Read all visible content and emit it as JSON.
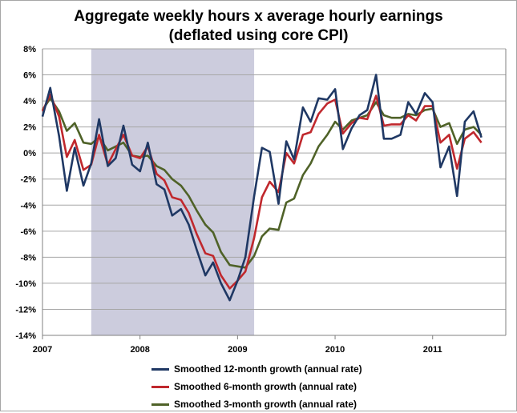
{
  "chart_data": {
    "type": "line",
    "title": "Aggregate weekly hours x average hourly earnings",
    "subtitle": "(deflated using core CPI)",
    "xlabel": "",
    "ylabel": "",
    "ylim": [
      -14,
      8
    ],
    "xlim": [
      2007.0,
      2011.75
    ],
    "yticks": [
      "8%",
      "6%",
      "4%",
      "2%",
      "0%",
      "-2%",
      "-4%",
      "-6%",
      "-8%",
      "-10%",
      "-12%",
      "-14%"
    ],
    "ytick_values": [
      8,
      6,
      4,
      2,
      0,
      -2,
      -4,
      -6,
      -8,
      -10,
      -12,
      -14
    ],
    "xticks": [
      "2007",
      "2008",
      "2009",
      "2010",
      "2011"
    ],
    "xtick_values": [
      2007,
      2008,
      2009,
      2010,
      2011
    ],
    "recession": {
      "start": 2007.5,
      "end": 2009.17
    },
    "grid": true,
    "legend_position": "bottom",
    "colors": {
      "recession": "#ccccdd",
      "grid": "#a6a6a6"
    },
    "series": [
      {
        "name": "Smoothed 12-month growth (annual rate)",
        "color": "#1f3864",
        "points": [
          [
            2007.0,
            2.8
          ],
          [
            2007.08,
            5.0
          ],
          [
            2007.17,
            1.3
          ],
          [
            2007.25,
            -2.9
          ],
          [
            2007.33,
            0.4
          ],
          [
            2007.42,
            -2.5
          ],
          [
            2007.5,
            -0.8
          ],
          [
            2007.58,
            2.6
          ],
          [
            2007.67,
            -1.0
          ],
          [
            2007.75,
            -0.4
          ],
          [
            2007.83,
            2.1
          ],
          [
            2007.92,
            -0.9
          ],
          [
            2008.0,
            -1.4
          ],
          [
            2008.08,
            0.8
          ],
          [
            2008.17,
            -2.4
          ],
          [
            2008.25,
            -2.8
          ],
          [
            2008.33,
            -4.8
          ],
          [
            2008.42,
            -4.3
          ],
          [
            2008.5,
            -5.5
          ],
          [
            2008.58,
            -7.4
          ],
          [
            2008.67,
            -9.4
          ],
          [
            2008.75,
            -8.4
          ],
          [
            2008.83,
            -10.0
          ],
          [
            2008.92,
            -11.3
          ],
          [
            2009.0,
            -9.8
          ],
          [
            2009.08,
            -8.0
          ],
          [
            2009.17,
            -3.3
          ],
          [
            2009.25,
            0.4
          ],
          [
            2009.33,
            0.1
          ],
          [
            2009.42,
            -3.9
          ],
          [
            2009.5,
            0.9
          ],
          [
            2009.58,
            -0.5
          ],
          [
            2009.67,
            3.5
          ],
          [
            2009.75,
            2.4
          ],
          [
            2009.83,
            4.2
          ],
          [
            2009.92,
            4.1
          ],
          [
            2010.0,
            4.9
          ],
          [
            2010.08,
            0.3
          ],
          [
            2010.17,
            1.9
          ],
          [
            2010.25,
            2.9
          ],
          [
            2010.33,
            3.3
          ],
          [
            2010.42,
            6.0
          ],
          [
            2010.5,
            1.1
          ],
          [
            2010.58,
            1.1
          ],
          [
            2010.67,
            1.4
          ],
          [
            2010.75,
            3.9
          ],
          [
            2010.83,
            3.0
          ],
          [
            2010.92,
            4.6
          ],
          [
            2011.0,
            3.9
          ],
          [
            2011.08,
            -1.1
          ],
          [
            2011.17,
            0.5
          ],
          [
            2011.25,
            -3.3
          ],
          [
            2011.33,
            2.4
          ],
          [
            2011.42,
            3.2
          ],
          [
            2011.5,
            1.2
          ]
        ]
      },
      {
        "name": "Smoothed 6-month growth (annual rate)",
        "color": "#c0282d",
        "points": [
          [
            2007.0,
            3.2
          ],
          [
            2007.08,
            4.5
          ],
          [
            2007.17,
            2.8
          ],
          [
            2007.25,
            -0.3
          ],
          [
            2007.33,
            1.0
          ],
          [
            2007.42,
            -1.3
          ],
          [
            2007.5,
            -0.9
          ],
          [
            2007.58,
            1.4
          ],
          [
            2007.67,
            -0.9
          ],
          [
            2007.75,
            0.3
          ],
          [
            2007.83,
            1.4
          ],
          [
            2007.92,
            -0.2
          ],
          [
            2008.0,
            -0.4
          ],
          [
            2008.08,
            0.5
          ],
          [
            2008.17,
            -1.6
          ],
          [
            2008.25,
            -2.1
          ],
          [
            2008.33,
            -3.4
          ],
          [
            2008.42,
            -3.6
          ],
          [
            2008.5,
            -4.6
          ],
          [
            2008.58,
            -6.2
          ],
          [
            2008.67,
            -7.7
          ],
          [
            2008.75,
            -7.9
          ],
          [
            2008.83,
            -9.4
          ],
          [
            2008.92,
            -10.4
          ],
          [
            2009.0,
            -9.8
          ],
          [
            2009.08,
            -9.1
          ],
          [
            2009.17,
            -6.5
          ],
          [
            2009.25,
            -3.4
          ],
          [
            2009.33,
            -2.2
          ],
          [
            2009.42,
            -3.0
          ],
          [
            2009.5,
            0.0
          ],
          [
            2009.58,
            -0.8
          ],
          [
            2009.67,
            1.4
          ],
          [
            2009.75,
            1.6
          ],
          [
            2009.83,
            3.0
          ],
          [
            2009.92,
            3.8
          ],
          [
            2010.0,
            4.1
          ],
          [
            2010.08,
            1.5
          ],
          [
            2010.17,
            2.3
          ],
          [
            2010.25,
            2.7
          ],
          [
            2010.33,
            2.6
          ],
          [
            2010.42,
            4.4
          ],
          [
            2010.5,
            2.1
          ],
          [
            2010.58,
            2.2
          ],
          [
            2010.67,
            2.2
          ],
          [
            2010.75,
            2.9
          ],
          [
            2010.83,
            2.5
          ],
          [
            2010.92,
            3.6
          ],
          [
            2011.0,
            3.6
          ],
          [
            2011.08,
            0.8
          ],
          [
            2011.17,
            1.4
          ],
          [
            2011.25,
            -1.2
          ],
          [
            2011.33,
            1.1
          ],
          [
            2011.42,
            1.6
          ],
          [
            2011.5,
            0.8
          ]
        ]
      },
      {
        "name": "Smoothed 3-month growth (annual rate)",
        "color": "#4f6228",
        "points": [
          [
            2007.0,
            3.3
          ],
          [
            2007.08,
            4.2
          ],
          [
            2007.17,
            3.2
          ],
          [
            2007.25,
            1.7
          ],
          [
            2007.33,
            2.3
          ],
          [
            2007.42,
            0.8
          ],
          [
            2007.5,
            0.7
          ],
          [
            2007.58,
            1.2
          ],
          [
            2007.67,
            0.2
          ],
          [
            2007.75,
            0.5
          ],
          [
            2007.83,
            0.8
          ],
          [
            2007.92,
            -0.2
          ],
          [
            2008.0,
            -0.3
          ],
          [
            2008.08,
            -0.2
          ],
          [
            2008.17,
            -1.0
          ],
          [
            2008.25,
            -1.3
          ],
          [
            2008.33,
            -2.0
          ],
          [
            2008.42,
            -2.5
          ],
          [
            2008.5,
            -3.3
          ],
          [
            2008.58,
            -4.4
          ],
          [
            2008.67,
            -5.5
          ],
          [
            2008.75,
            -6.1
          ],
          [
            2008.83,
            -7.6
          ],
          [
            2008.92,
            -8.6
          ],
          [
            2009.0,
            -8.7
          ],
          [
            2009.08,
            -8.8
          ],
          [
            2009.17,
            -7.9
          ],
          [
            2009.25,
            -6.4
          ],
          [
            2009.33,
            -5.8
          ],
          [
            2009.42,
            -5.9
          ],
          [
            2009.5,
            -3.8
          ],
          [
            2009.58,
            -3.5
          ],
          [
            2009.67,
            -1.7
          ],
          [
            2009.75,
            -0.8
          ],
          [
            2009.83,
            0.5
          ],
          [
            2009.92,
            1.4
          ],
          [
            2010.0,
            2.4
          ],
          [
            2010.08,
            1.8
          ],
          [
            2010.17,
            2.5
          ],
          [
            2010.25,
            2.7
          ],
          [
            2010.33,
            2.9
          ],
          [
            2010.42,
            3.9
          ],
          [
            2010.5,
            2.9
          ],
          [
            2010.58,
            2.7
          ],
          [
            2010.67,
            2.7
          ],
          [
            2010.75,
            3.0
          ],
          [
            2010.83,
            2.9
          ],
          [
            2010.92,
            3.3
          ],
          [
            2011.0,
            3.4
          ],
          [
            2011.08,
            2.0
          ],
          [
            2011.17,
            2.3
          ],
          [
            2011.25,
            0.7
          ],
          [
            2011.33,
            1.8
          ],
          [
            2011.42,
            2.0
          ],
          [
            2011.5,
            1.4
          ]
        ]
      }
    ]
  }
}
